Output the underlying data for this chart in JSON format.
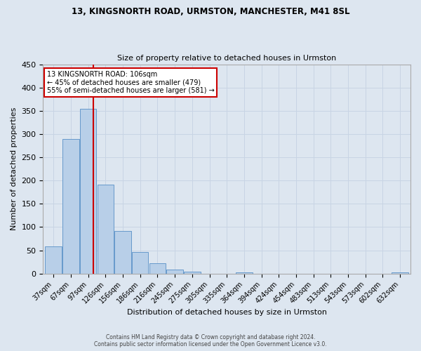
{
  "title_line1": "13, KINGSNORTH ROAD, URMSTON, MANCHESTER, M41 8SL",
  "title_line2": "Size of property relative to detached houses in Urmston",
  "xlabel": "Distribution of detached houses by size in Urmston",
  "ylabel": "Number of detached properties",
  "bar_labels": [
    "37sqm",
    "67sqm",
    "97sqm",
    "126sqm",
    "156sqm",
    "186sqm",
    "216sqm",
    "245sqm",
    "275sqm",
    "305sqm",
    "335sqm",
    "364sqm",
    "394sqm",
    "424sqm",
    "454sqm",
    "483sqm",
    "513sqm",
    "543sqm",
    "573sqm",
    "602sqm",
    "632sqm"
  ],
  "bar_values": [
    58,
    290,
    355,
    192,
    91,
    46,
    22,
    8,
    4,
    0,
    0,
    3,
    0,
    0,
    0,
    0,
    0,
    0,
    0,
    0,
    3
  ],
  "bar_color": "#b8cfe8",
  "bar_edge_color": "#6699cc",
  "grid_color": "#c8d4e4",
  "background_color": "#dde6f0",
  "vline_x_data": 2,
  "vline_color": "#cc0000",
  "annotation_text": "13 KINGSNORTH ROAD: 106sqm\n← 45% of detached houses are smaller (479)\n55% of semi-detached houses are larger (581) →",
  "annotation_box_color": "#ffffff",
  "annotation_box_edge_color": "#cc0000",
  "ylim": [
    0,
    450
  ],
  "yticks": [
    0,
    50,
    100,
    150,
    200,
    250,
    300,
    350,
    400,
    450
  ],
  "footer_line1": "Contains HM Land Registry data © Crown copyright and database right 2024.",
  "footer_line2": "Contains public sector information licensed under the Open Government Licence v3.0.",
  "n_bars": 21
}
